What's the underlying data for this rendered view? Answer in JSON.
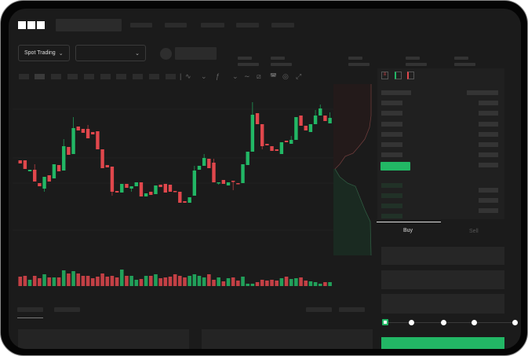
{
  "header": {
    "logo": "OKX",
    "nav_items": 4
  },
  "market": {
    "mode_label": "Spot Trading",
    "pair_dropdown_value": ""
  },
  "order_form": {
    "tabs": [
      "Buy",
      "Sell"
    ],
    "active_tab": "Buy",
    "slider_percent": 0
  },
  "colors": {
    "up": "#22b765",
    "down": "#e0474c",
    "background": "#1b1b1b",
    "frame": "#050505"
  },
  "toolbar_icons": [
    "line-style-icon",
    "chevron-down-icon",
    "indicator-icon",
    "chevron-down-icon",
    "wave-icon",
    "ruler-icon",
    "camera-icon",
    "settings-icon",
    "fullscreen-icon"
  ],
  "orderbook_icons": [
    "orderbook-both-icon",
    "orderbook-bids-icon",
    "orderbook-asks-icon"
  ],
  "chart_data": {
    "type": "candlestick",
    "ohlc": [
      [
        97,
        97,
        93,
        93
      ],
      [
        97,
        97,
        86,
        86
      ],
      [
        83,
        85,
        83,
        85
      ],
      [
        85,
        92,
        70,
        70
      ],
      [
        68,
        68,
        64,
        64
      ],
      [
        61,
        76,
        57,
        76
      ],
      [
        78,
        78,
        70,
        70
      ],
      [
        74,
        92,
        74,
        92
      ],
      [
        91,
        91,
        83,
        83
      ],
      [
        84,
        124,
        84,
        115
      ],
      [
        114,
        114,
        104,
        104
      ],
      [
        105,
        152,
        105,
        138
      ],
      [
        140,
        140,
        135,
        135
      ],
      [
        137,
        137,
        132,
        132
      ],
      [
        137,
        142,
        125,
        125
      ],
      [
        133,
        133,
        130,
        130
      ],
      [
        134,
        134,
        111,
        111
      ],
      [
        111,
        111,
        87,
        87
      ],
      [
        91,
        91,
        88,
        88
      ],
      [
        89,
        89,
        52,
        57
      ],
      [
        58,
        58,
        56,
        56
      ],
      [
        56,
        67,
        56,
        67
      ],
      [
        67,
        67,
        62,
        62
      ],
      [
        61,
        64,
        57,
        64
      ],
      [
        64,
        69,
        64,
        69
      ],
      [
        69,
        69,
        51,
        51
      ],
      [
        51,
        55,
        51,
        55
      ],
      [
        57,
        57,
        53,
        53
      ],
      [
        54,
        65,
        54,
        65
      ],
      [
        66,
        66,
        63,
        63
      ],
      [
        67,
        67,
        56,
        56
      ],
      [
        66,
        66,
        57,
        57
      ],
      [
        58,
        58,
        57,
        57
      ],
      [
        57,
        57,
        43,
        43
      ],
      [
        45,
        45,
        43,
        43
      ],
      [
        43,
        50,
        43,
        50
      ],
      [
        52,
        90,
        52,
        84
      ],
      [
        85,
        90,
        85,
        90
      ],
      [
        90,
        105,
        90,
        100
      ],
      [
        99,
        99,
        87,
        87
      ],
      [
        94,
        99,
        69,
        69
      ],
      [
        68,
        69,
        66,
        69
      ],
      [
        72,
        72,
        67,
        67
      ],
      [
        65,
        69,
        65,
        69
      ],
      [
        71,
        71,
        59,
        70
      ],
      [
        68,
        68,
        67,
        67
      ],
      [
        68,
        92,
        68,
        92
      ],
      [
        91,
        108,
        91,
        108
      ],
      [
        108,
        171,
        108,
        155
      ],
      [
        157,
        157,
        143,
        143
      ],
      [
        143,
        143,
        111,
        115
      ],
      [
        118,
        118,
        116,
        116
      ],
      [
        115,
        115,
        109,
        109
      ],
      [
        111,
        111,
        109,
        109
      ],
      [
        105,
        120,
        105,
        120
      ],
      [
        122,
        122,
        120,
        120
      ],
      [
        118,
        128,
        118,
        123
      ],
      [
        123,
        152,
        123,
        152
      ],
      [
        154,
        154,
        141,
        141
      ],
      [
        141,
        141,
        135,
        135
      ],
      [
        133,
        143,
        133,
        143
      ],
      [
        143,
        161,
        143,
        154
      ],
      [
        154,
        168,
        154,
        163
      ],
      [
        154,
        154,
        147,
        147
      ],
      [
        144,
        158,
        144,
        151
      ]
    ],
    "volume": [
      12,
      13,
      8,
      13,
      10,
      15,
      11,
      11,
      11,
      20,
      16,
      19,
      16,
      13,
      13,
      10,
      12,
      16,
      12,
      13,
      11,
      21,
      13,
      13,
      8,
      9,
      13,
      13,
      15,
      10,
      11,
      12,
      15,
      13,
      11,
      13,
      15,
      13,
      11,
      15,
      8,
      11,
      6,
      10,
      11,
      7,
      12,
      3,
      3,
      5,
      8,
      7,
      8,
      7,
      10,
      12,
      9,
      10,
      11,
      7,
      6,
      5,
      3,
      5,
      5
    ]
  }
}
